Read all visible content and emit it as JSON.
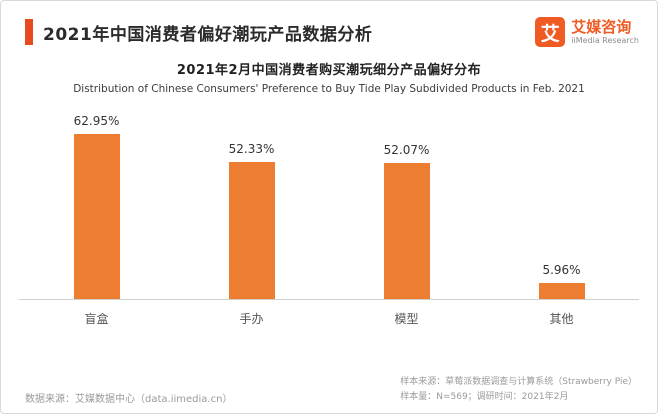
{
  "header": {
    "title": "2021年中国消费者偏好潮玩产品数据分析",
    "logo": {
      "mark": "艾",
      "cn": "艾媒咨询",
      "en": "iiMedia Research"
    }
  },
  "chart": {
    "title_cn": "2021年2月中国消费者购买潮玩细分产品偏好分布",
    "title_en": "Distribution of Chinese Consumers' Preference to Buy Tide Play Subdivided Products in Feb. 2021"
  },
  "chart_data": {
    "type": "bar",
    "title": "2021年2月中国消费者购买潮玩细分产品偏好分布",
    "categories": [
      "盲盒",
      "手办",
      "模型",
      "其他"
    ],
    "values": [
      62.95,
      52.33,
      52.07,
      5.96
    ],
    "value_labels": [
      "62.95%",
      "52.33%",
      "52.07%",
      "5.96%"
    ],
    "unit": "%",
    "ylim": [
      0,
      70
    ],
    "bar_color": "#ED7D31",
    "grid": false,
    "legend": "none"
  },
  "footer": {
    "source_left": "数据来源：艾媒数据中心（data.iimedia.cn）",
    "sample_source": "样本来源：草莓派数据调查与计算系统（Strawberry Pie）",
    "sample_info": "样本量：N=569；调研时间：2021年2月"
  }
}
